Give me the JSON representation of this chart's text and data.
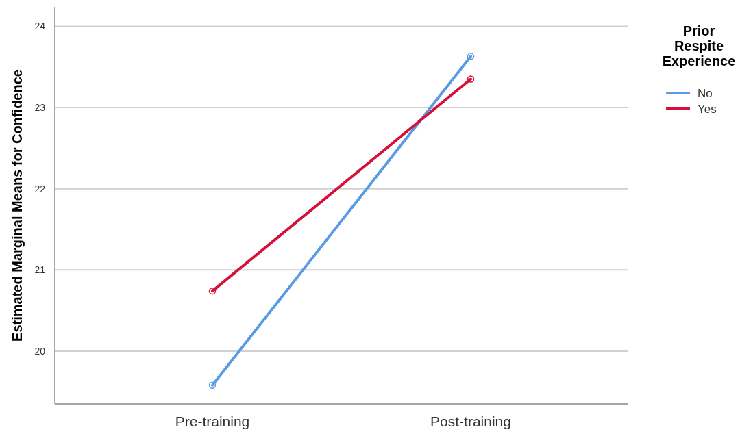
{
  "chart_data": {
    "type": "line",
    "ylabel": "Estimated Marginal Means for Confidence",
    "legend_title": "Prior Respite Experience",
    "categories": [
      "Pre-training",
      "Post-training"
    ],
    "series": [
      {
        "name": "No",
        "color": "#5b9be6",
        "values": [
          19.58,
          23.63
        ]
      },
      {
        "name": "Yes",
        "color": "#d5103a",
        "values": [
          20.74,
          23.35
        ]
      }
    ],
    "ylim": [
      19.35,
      24.24
    ],
    "yticks": [
      20,
      21,
      22,
      23,
      24
    ],
    "grid": "y",
    "legend": "top right",
    "marker": "circle",
    "line_style": "solid"
  }
}
